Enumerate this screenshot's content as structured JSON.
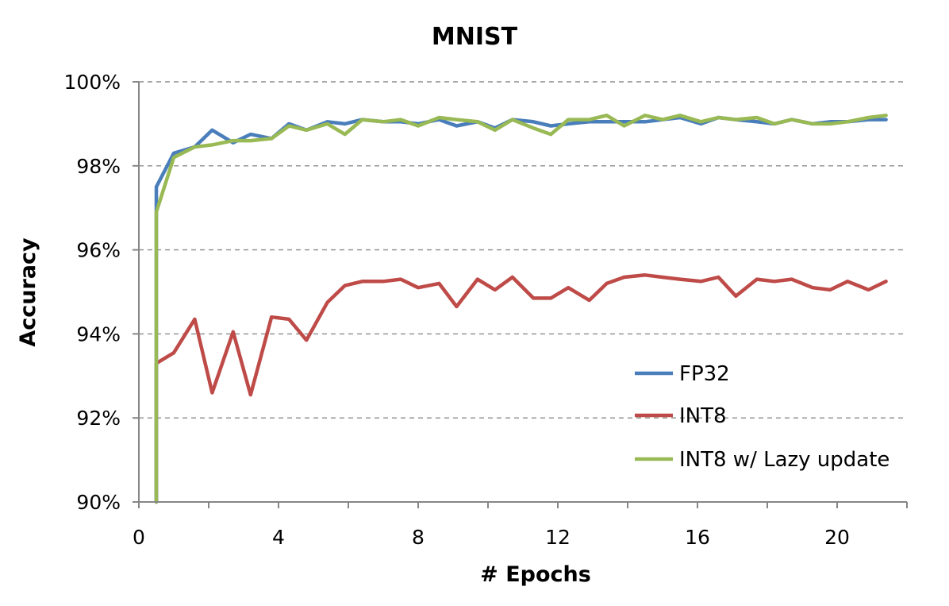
{
  "chart_data": {
    "type": "line",
    "title": "MNIST",
    "xlabel": "# Epochs",
    "ylabel": "Accuracy",
    "xlim": [
      0,
      22
    ],
    "ylim": [
      90,
      100
    ],
    "x_ticks": [
      0,
      4,
      8,
      12,
      16,
      20
    ],
    "x_tick_labels": [
      "0",
      "4",
      "8",
      "12",
      "16",
      "20"
    ],
    "y_ticks": [
      90,
      92,
      94,
      96,
      98,
      100
    ],
    "y_tick_labels": [
      "90%",
      "92%",
      "94%",
      "96%",
      "98%",
      "100%"
    ],
    "grid": "horizontal dashed",
    "legend_position": "bottom-right",
    "x": [
      0.5,
      0.5,
      1.0,
      1.6,
      2.1,
      2.7,
      3.2,
      3.8,
      4.3,
      4.8,
      5.4,
      5.9,
      6.4,
      7.0,
      7.5,
      8.0,
      8.6,
      9.1,
      9.7,
      10.2,
      10.7,
      11.3,
      11.8,
      12.3,
      12.9,
      13.4,
      13.9,
      14.5,
      15.0,
      15.5,
      16.1,
      16.6,
      17.1,
      17.7,
      18.2,
      18.7,
      19.3,
      19.8,
      20.3,
      20.9,
      21.4
    ],
    "series": [
      {
        "name": "FP32",
        "color": "#4a7ebb",
        "values": [
          90.0,
          97.5,
          98.3,
          98.45,
          98.85,
          98.55,
          98.75,
          98.65,
          99.0,
          98.85,
          99.05,
          99.0,
          99.1,
          99.05,
          99.05,
          99.0,
          99.1,
          98.95,
          99.05,
          98.9,
          99.1,
          99.05,
          98.95,
          99.0,
          99.05,
          99.05,
          99.05,
          99.05,
          99.1,
          99.15,
          99.0,
          99.15,
          99.1,
          99.05,
          99.0,
          99.1,
          99.0,
          99.05,
          99.05,
          99.1,
          99.1
        ]
      },
      {
        "name": "INT8",
        "color": "#be4b48",
        "values": [
          90.0,
          93.3,
          93.55,
          94.35,
          92.6,
          94.05,
          92.55,
          94.4,
          94.35,
          93.85,
          94.75,
          95.15,
          95.25,
          95.25,
          95.3,
          95.1,
          95.2,
          94.65,
          95.3,
          95.05,
          95.35,
          94.85,
          94.85,
          95.1,
          94.8,
          95.2,
          95.35,
          95.4,
          95.35,
          95.3,
          95.25,
          95.35,
          94.9,
          95.3,
          95.25,
          95.3,
          95.1,
          95.05,
          95.25,
          95.05,
          95.25
        ]
      },
      {
        "name": "INT8 w/ Lazy update",
        "color": "#98b954",
        "values": [
          90.0,
          96.9,
          98.2,
          98.45,
          98.5,
          98.6,
          98.6,
          98.65,
          98.95,
          98.85,
          99.0,
          98.75,
          99.1,
          99.05,
          99.1,
          98.95,
          99.15,
          99.1,
          99.05,
          98.85,
          99.1,
          98.9,
          98.75,
          99.1,
          99.1,
          99.2,
          98.95,
          99.2,
          99.1,
          99.2,
          99.05,
          99.15,
          99.1,
          99.15,
          99.0,
          99.1,
          99.0,
          99.0,
          99.05,
          99.15,
          99.2
        ]
      }
    ]
  }
}
